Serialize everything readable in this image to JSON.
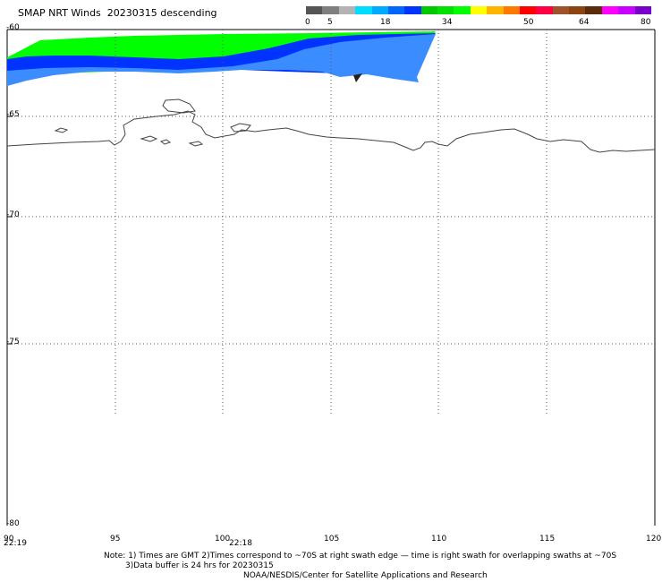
{
  "header": {
    "title": "SMAP NRT Winds  20230315 descending"
  },
  "colorbar": {
    "labels": [
      "0",
      "5",
      "18",
      "34",
      "50",
      "64",
      "80"
    ],
    "segments": [
      "#555555",
      "#7f7f7f",
      "#b3b3b3",
      "#00dcff",
      "#00aaff",
      "#0066ff",
      "#0033ff",
      "#00c800",
      "#00e100",
      "#00ff00",
      "#ffff00",
      "#ffb400",
      "#ff7800",
      "#ff0000",
      "#ff0044",
      "#a0522d",
      "#8b4513",
      "#5c2b0c",
      "#ff00ff",
      "#c800ff",
      "#7800c8"
    ]
  },
  "map": {
    "lat_labels": [
      "-60",
      "-65",
      "-70",
      "-75",
      "-80"
    ],
    "lon_labels": [
      "90",
      "95",
      "100",
      "105",
      "110",
      "115",
      "120"
    ],
    "time_labels": [
      "22:19",
      "22:18"
    ]
  },
  "notes": {
    "line1": "Note: 1) Times are GMT  2)Times correspond to ~70S at right swath edge — time is right swath for overlapping swaths at ~70S",
    "line2": "3)Data buffer is 24 hrs for 20230315",
    "line3": "NOAA/NESDIS/Center for Satellite Applications and Research"
  },
  "colors": {
    "low_wind": "#00ff00",
    "mid_wind": "#0055ff",
    "coast": "#444444",
    "grid": "#555555"
  }
}
